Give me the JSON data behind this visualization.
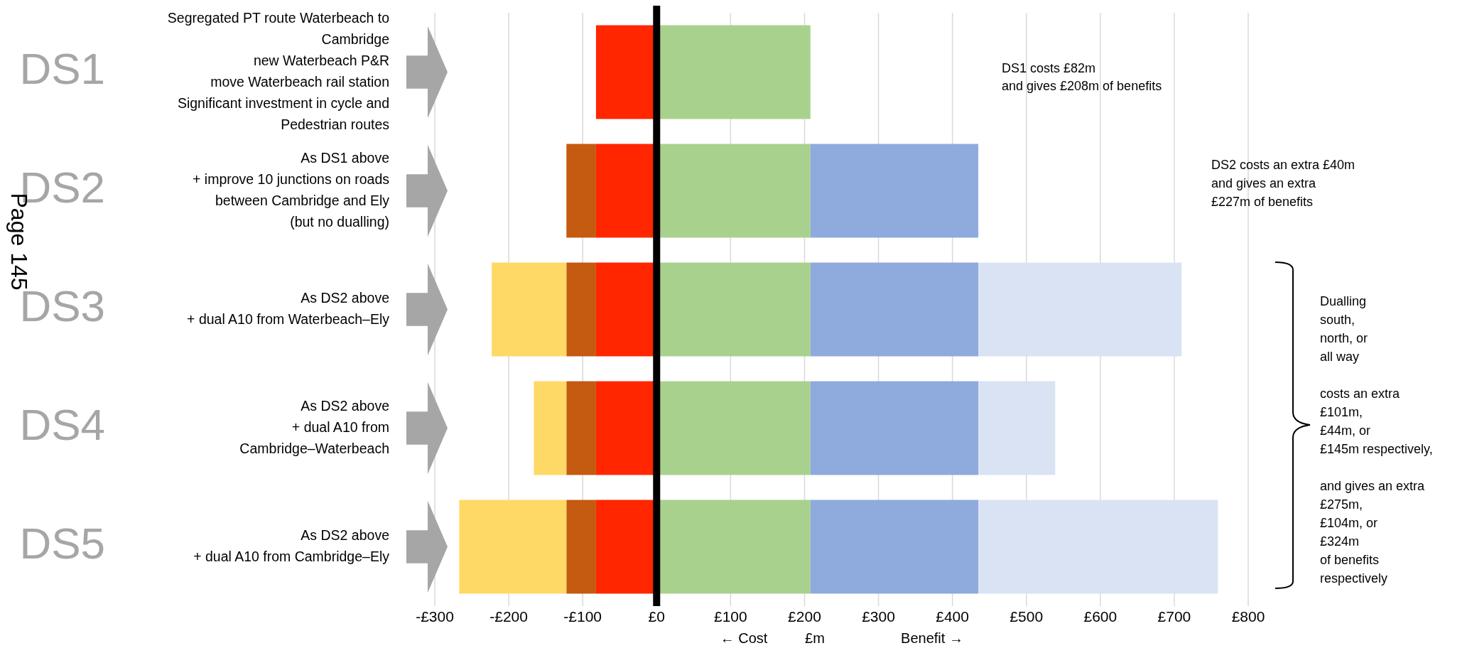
{
  "chart_data": {
    "type": "bar",
    "orientation": "horizontal",
    "stacked": true,
    "categories": [
      "Segregated PT route Waterbeach to\nCambridge\nnew Waterbeach P&R\nmove Waterbeach rail station\nSignificant investment in cycle and\nPedestrian routes",
      "As DS1 above\n+ improve 10 junctions on roads\nbetween Cambridge and Ely\n(but no dualling)",
      "As DS2 above\n+ dual A10 from Waterbeach–Ely",
      "As DS2 above\n+ dual A10 from\nCambridge–Waterbeach",
      "As DS2 above\n+ dual A10 from Cambridge–Ely"
    ],
    "series": [
      {
        "color": "#a9d18e",
        "values": [
          208,
          208,
          208,
          208,
          208
        ]
      },
      {
        "color": "#8faadc",
        "values": [
          null,
          227,
          227,
          227,
          227
        ]
      },
      {
        "color": "#dae3f3",
        "values": [
          null,
          null,
          275,
          104,
          324
        ]
      },
      {
        "color": "#ff2600",
        "values": [
          -82,
          -82,
          -82,
          -82,
          -82
        ]
      },
      {
        "color": "#c55a11",
        "values": [
          null,
          -40,
          -40,
          -40,
          -40
        ]
      },
      {
        "color": "#ffd966",
        "values": [
          null,
          null,
          -101,
          -44,
          -145
        ]
      }
    ],
    "xlim": [
      -300,
      800
    ],
    "xticks": [
      {
        "value": -300,
        "label": "-£300"
      },
      {
        "value": -200,
        "label": "-£200"
      },
      {
        "value": -100,
        "label": "-£100"
      },
      {
        "value": 0,
        "label": "£0"
      },
      {
        "value": 100,
        "label": "£100"
      },
      {
        "value": 200,
        "label": "£200"
      },
      {
        "value": 300,
        "label": "£300"
      },
      {
        "value": 400,
        "label": "£400"
      },
      {
        "value": 500,
        "label": "£500"
      },
      {
        "value": 600,
        "label": "£600"
      },
      {
        "value": 700,
        "label": "£700"
      },
      {
        "value": 800,
        "label": "£800"
      }
    ],
    "grid": "x",
    "xlabel": "£m",
    "ref_lines": [
      {
        "axis": "x",
        "value": 0,
        "color": "#000000"
      }
    ],
    "annotations": [
      "DS1",
      "DS2",
      "DS3",
      "DS4",
      "DS5",
      "← Cost",
      "Benefit →",
      "DS1 costs £82m\nand gives £208m of benefits",
      "DS2 costs an extra £40m\nand gives an extra\n£227m of benefits",
      "Dualling\nsouth,\nnorth, or\nall way\n\ncosts an extra\n£101m,\n£44m, or\n£145m respectively,\n\nand gives an extra\n£275m,\n£104m, or\n£324m\nof benefits\nrespectively",
      "Page 145"
    ]
  }
}
